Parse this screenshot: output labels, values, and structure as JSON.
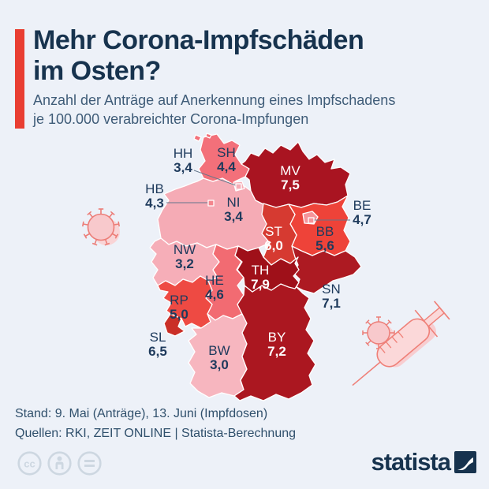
{
  "page": {
    "background": "#edf1f8"
  },
  "header": {
    "accent_color": "#e93e32",
    "title_lines": [
      "Mehr Corona-Impfschäden",
      "im Osten?"
    ],
    "title_color": "#17334e",
    "subtitle_lines": [
      "Anzahl der Anträge auf Anerkennung eines Impfschadens",
      "je 100.000 verabreichter Corona-Impfungen"
    ],
    "subtitle_color": "#3f5c78"
  },
  "chart_data": {
    "type": "choropleth_map",
    "region": "Germany federal states",
    "title": "Mehr Corona-Impfschäden im Osten?",
    "subtitle": "Anzahl der Anträge auf Anerkennung eines Impfschadens je 100.000 verabreichter Corona-Impfungen",
    "value_unit": "Anträge auf Anerkennung eines Impfschadens je 100.000 verabreichter Corona-Impfungen",
    "states": [
      {
        "code": "SH",
        "value": 4.4,
        "value_label": "4,4",
        "fill": "#f3707a",
        "label": "dark"
      },
      {
        "code": "HH",
        "value": 3.4,
        "value_label": "3,4",
        "fill": "#f5abb5",
        "label": "dark"
      },
      {
        "code": "MV",
        "value": 7.5,
        "value_label": "7,5",
        "fill": "#a91421",
        "label": "light"
      },
      {
        "code": "NI",
        "value": 3.4,
        "value_label": "3,4",
        "fill": "#f5abb5",
        "label": "dark"
      },
      {
        "code": "HB",
        "value": 4.3,
        "value_label": "4,3",
        "fill": "#f4858d",
        "label": "dark"
      },
      {
        "code": "BE",
        "value": 4.7,
        "value_label": "4,7",
        "fill": "#f5949a",
        "label": "dark"
      },
      {
        "code": "BB",
        "value": 5.6,
        "value_label": "5,6",
        "fill": "#ee4339",
        "label": "dark"
      },
      {
        "code": "ST",
        "value": 6.0,
        "value_label": "6,0",
        "fill": "#d63a31",
        "label": "light"
      },
      {
        "code": "NW",
        "value": 3.2,
        "value_label": "3,2",
        "fill": "#f6aeb8",
        "label": "dark"
      },
      {
        "code": "TH",
        "value": 7.9,
        "value_label": "7,9",
        "fill": "#9f1019",
        "label": "light"
      },
      {
        "code": "HE",
        "value": 4.6,
        "value_label": "4,6",
        "fill": "#f26b72",
        "label": "dark"
      },
      {
        "code": "SN",
        "value": 7.1,
        "value_label": "7,1",
        "fill": "#ad1a22",
        "label": "dark"
      },
      {
        "code": "RP",
        "value": 5.0,
        "value_label": "5,0",
        "fill": "#ee4a43",
        "label": "dark"
      },
      {
        "code": "SL",
        "value": 6.5,
        "value_label": "6,5",
        "fill": "#ca2f27",
        "label": "dark"
      },
      {
        "code": "BW",
        "value": 3.0,
        "value_label": "3,0",
        "fill": "#f7b6bf",
        "label": "dark"
      },
      {
        "code": "BY",
        "value": 7.2,
        "value_label": "7,2",
        "fill": "#ab1720",
        "label": "light"
      }
    ]
  },
  "footer": {
    "stand": "Stand: 9. Mai (Anträge), 13. Juni (Impfdosen)",
    "quellen": "Quellen: RKI, ZEIT ONLINE | Statista-Berechnung",
    "text_color": "#30506c"
  },
  "license": {
    "icons": [
      "cc-icon",
      "attribution-icon",
      "no-derivatives-icon"
    ],
    "color": "#cdd7e1"
  },
  "branding": {
    "logo_text": "statista",
    "logo_color": "#17334e"
  },
  "decorations": {
    "virus_stroke": "#ec7d77",
    "virus_fill": "#f8c9cc",
    "virus_shadow": "#f9d4d6",
    "syringe_stroke": "#ef8078",
    "syringe_fill": "#fbd8d9",
    "syringe_shadow": "#f8cdd0",
    "map_border": "#ffffff",
    "connector_color": "#64768a"
  }
}
